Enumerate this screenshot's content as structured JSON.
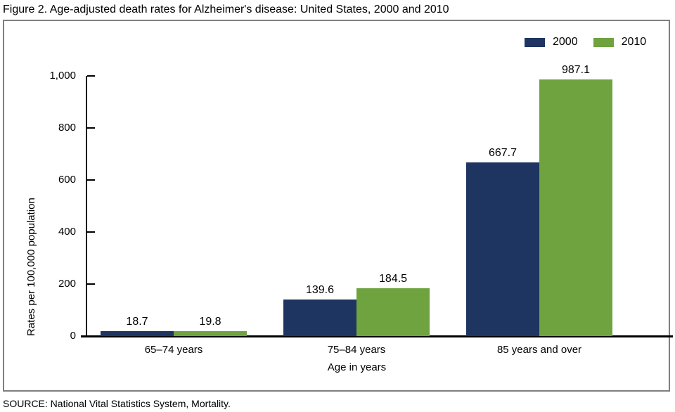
{
  "title": "Figure 2. Age-adjusted death rates for Alzheimer's disease: United States, 2000 and 2010",
  "source": "SOURCE: National Vital Statistics System, Mortality.",
  "chart_data": {
    "type": "bar",
    "title": "Figure 2. Age-adjusted death rates for Alzheimer's disease: United States, 2000 and 2010",
    "categories": [
      "65–74 years",
      "75–84 years",
      "85 years and over"
    ],
    "series": [
      {
        "name": "2000",
        "color": "#1e3561",
        "values": [
          18.7,
          139.6,
          667.7
        ]
      },
      {
        "name": "2010",
        "color": "#6ea33f",
        "values": [
          19.8,
          184.5,
          987.1
        ]
      }
    ],
    "xlabel": "Age in years",
    "ylabel": "Rates per 100,000 population",
    "ylim": [
      0,
      1000
    ],
    "yticks": [
      0,
      200,
      400,
      600,
      800,
      1000
    ],
    "ytick_labels": [
      "0",
      "200",
      "400",
      "600",
      "800",
      "1,000"
    ],
    "grid": false,
    "legend_position": "top-right",
    "value_labels_shown": true,
    "frame_border_color": "#7f7f7f",
    "axis_color": "#000000"
  }
}
